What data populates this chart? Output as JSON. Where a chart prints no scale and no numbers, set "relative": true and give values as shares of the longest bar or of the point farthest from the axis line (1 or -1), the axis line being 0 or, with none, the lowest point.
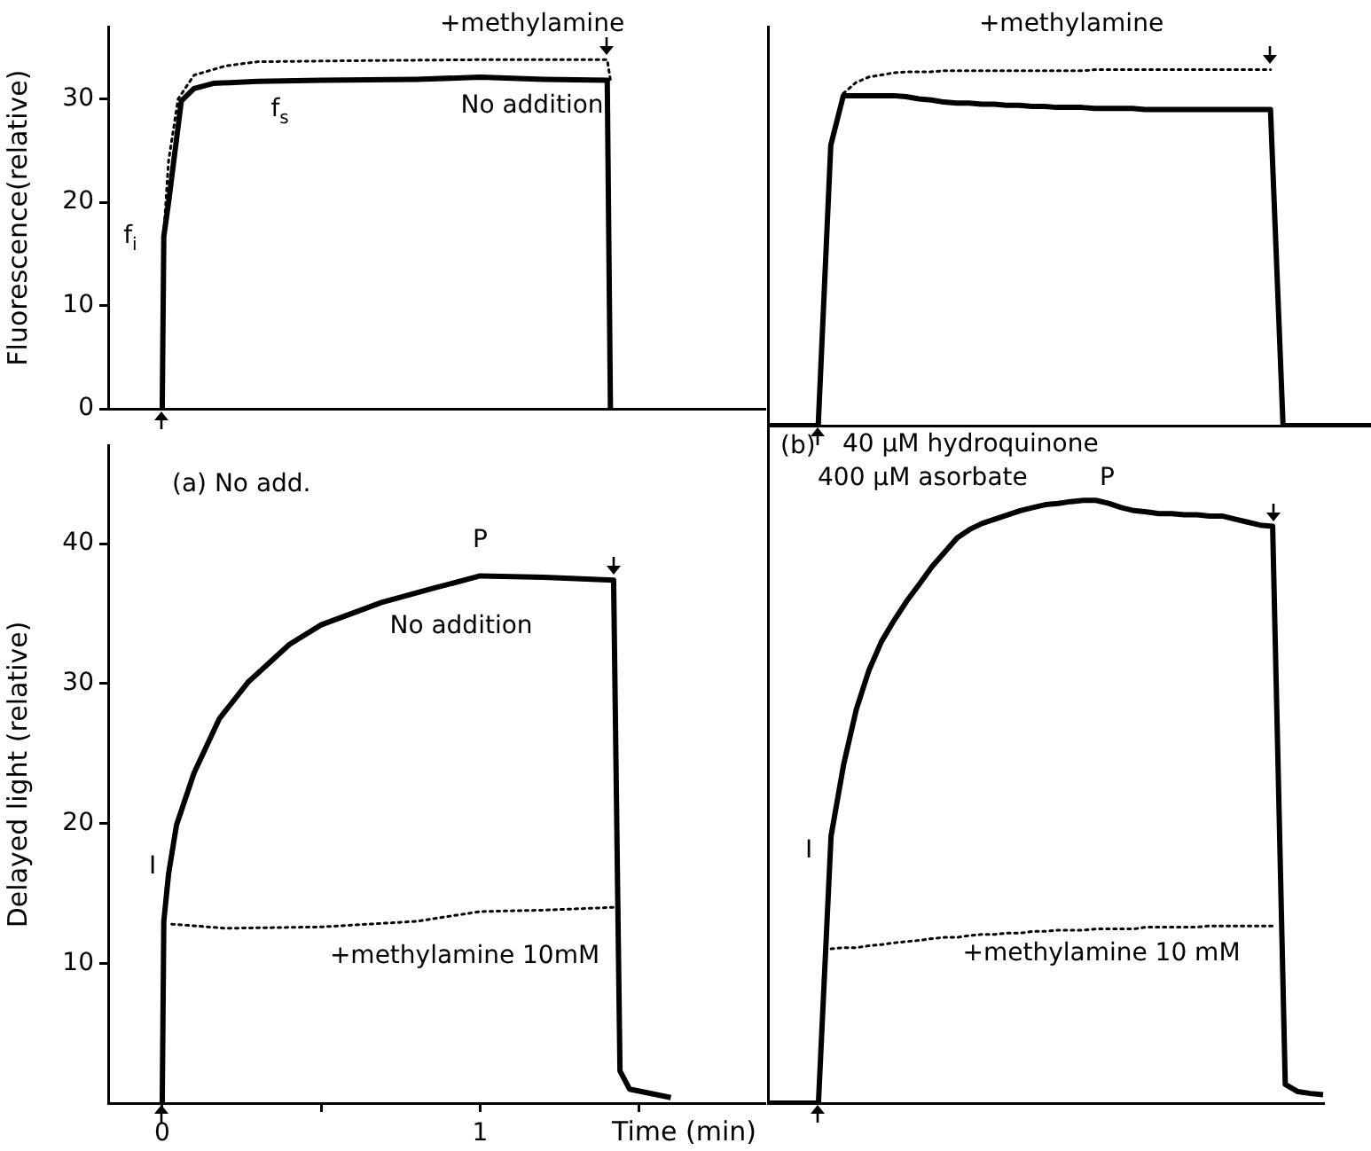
{
  "chart_data": [
    {
      "type": "line",
      "ylabel": "Fluorescence(relative)",
      "xlim": [
        -0.17,
        1.9
      ],
      "ylim": [
        0,
        37
      ],
      "yticks": [
        0,
        10,
        20,
        30
      ],
      "tick_labels": "y",
      "marker": "none",
      "annotations": [
        {
          "text": "f$_{i}$",
          "x": 0,
          "y": 17
        },
        {
          "text": "f$_{s}$",
          "x": 0.37,
          "y": 31.7
        }
      ],
      "series": [
        {
          "name": "No addition",
          "color": "#000000",
          "line_style": "solid",
          "x": [
            0,
            0.005,
            0.02,
            0.06,
            0.1,
            0.16,
            0.3,
            0.5,
            0.8,
            1.0,
            1.2,
            1.4,
            1.41
          ],
          "values": [
            0,
            16.7,
            20,
            29.8,
            31,
            31.5,
            31.7,
            31.8,
            31.9,
            32.1,
            31.9,
            31.8,
            0
          ]
        },
        {
          "name": "+methylamine",
          "color": "#000000",
          "line_style": "dotted",
          "x": [
            0.005,
            0.02,
            0.05,
            0.1,
            0.2,
            0.3,
            0.6,
            1.0,
            1.4,
            1.41
          ],
          "values": [
            17,
            24,
            30,
            32.3,
            33.2,
            33.6,
            33.7,
            33.8,
            33.8,
            31.8
          ]
        }
      ]
    },
    {
      "type": "line",
      "relative": true,
      "categories": [
        null,
        null,
        null,
        null,
        null,
        null,
        null,
        null,
        null,
        null,
        null,
        null,
        null,
        null,
        null,
        null,
        null,
        null,
        null,
        null,
        null,
        null,
        null,
        null,
        null,
        null,
        null,
        null,
        null,
        null,
        null,
        null,
        null,
        null,
        null,
        null,
        null,
        null,
        null,
        null,
        null,
        null,
        null,
        null,
        null,
        null,
        null,
        null,
        null
      ],
      "tick_labels": false,
      "marker": "none",
      "series": [
        {
          "color": "#000000",
          "line_style": "solid",
          "values": [
            0,
            0,
            0,
            0,
            0,
            0.788,
            0.927,
            0.927,
            0.927,
            0.927,
            0.927,
            0.924,
            0.918,
            0.915,
            0.909,
            0.906,
            0.906,
            0.903,
            0.903,
            0.9,
            0.9,
            0.897,
            0.897,
            0.894,
            0.894,
            0.894,
            0.891,
            0.891,
            0.891,
            0.891,
            0.888,
            0.888,
            0.888,
            0.888,
            0.888,
            0.888,
            0.888,
            0.888,
            0.888,
            0.888,
            0.888,
            0,
            0,
            0,
            0,
            0,
            0,
            0,
            0
          ]
        },
        {
          "name": "+methylamine",
          "color": "#000000",
          "line_style": "dotted",
          "values": [
            null,
            null,
            null,
            null,
            null,
            null,
            0.933,
            0.964,
            0.979,
            0.985,
            0.991,
            0.994,
            0.994,
            0.994,
            0.997,
            0.997,
            0.997,
            0.997,
            0.997,
            0.997,
            0.997,
            0.997,
            0.997,
            0.997,
            0.997,
            0.997,
            1,
            1,
            1,
            1,
            1,
            1,
            1,
            1,
            1,
            1,
            1,
            1,
            1,
            1,
            1,
            null,
            null,
            null,
            null,
            null,
            null,
            null,
            null
          ]
        }
      ]
    },
    {
      "type": "line",
      "ylabel": "Delayed light (relative)",
      "xlabel": "Time (min)",
      "xlim": [
        -0.17,
        1.9
      ],
      "ylim": [
        0,
        47
      ],
      "xticks": [
        0,
        {
          "value": 0.5,
          "label": null
        },
        1,
        {
          "value": 1.5,
          "label": null
        }
      ],
      "yticks": [
        10,
        20,
        30,
        40
      ],
      "marker": "none",
      "annotations": [
        "(a) No add.",
        {
          "text": "P",
          "x": 1.0,
          "y": 37.7
        },
        {
          "text": "I",
          "x": 0.02,
          "y": 16.4
        }
      ],
      "series": [
        {
          "name": "No addition",
          "color": "#000000",
          "line_style": "solid",
          "x": [
            0,
            0.005,
            0.02,
            0.045,
            0.1,
            0.18,
            0.27,
            0.4,
            0.5,
            0.69,
            0.85,
            1.0,
            1.2,
            1.42,
            1.44,
            1.47,
            1.6
          ],
          "values": [
            0,
            13,
            16.4,
            19.9,
            23.6,
            27.5,
            30.1,
            32.8,
            34.2,
            35.8,
            36.8,
            37.7,
            37.6,
            37.4,
            2.3,
            1.0,
            0.4
          ]
        },
        {
          "name": "+methylamine 10mM",
          "color": "#000000",
          "line_style": "dotted",
          "x": [
            0.03,
            0.2,
            0.5,
            0.8,
            1.0,
            1.2,
            1.42
          ],
          "values": [
            12.8,
            12.5,
            12.6,
            13.0,
            13.7,
            13.8,
            14.0
          ]
        }
      ]
    },
    {
      "type": "line",
      "relative": true,
      "categories": [
        null,
        null,
        null,
        null,
        null,
        null,
        null,
        null,
        null,
        null,
        null,
        null,
        null,
        null,
        null,
        null,
        null,
        null,
        null,
        null,
        null,
        null,
        null,
        null,
        null,
        null,
        null,
        null,
        null,
        null,
        null,
        null,
        null,
        null,
        null,
        null,
        null,
        null,
        null,
        null,
        null,
        null,
        null,
        null,
        null
      ],
      "tick_labels": false,
      "marker": "none",
      "annotations": [
        "(b)",
        "40 µM hydroquinone",
        "400 µM asorbate",
        "P",
        "I"
      ],
      "series": [
        {
          "color": "#000000",
          "line_style": "solid",
          "values": [
            0,
            0,
            0,
            0,
            0,
            0.443,
            0.562,
            0.653,
            0.718,
            0.766,
            0.801,
            0.833,
            0.861,
            0.89,
            0.914,
            0.938,
            0.952,
            0.962,
            0.969,
            0.976,
            0.983,
            0.988,
            0.993,
            0.995,
            0.998,
            1,
            1,
            0.995,
            0.988,
            0.983,
            0.981,
            0.978,
            0.978,
            0.976,
            0.976,
            0.974,
            0.974,
            0.969,
            0.964,
            0.959,
            0.957,
            0.031,
            0.019,
            0.016,
            0.014
          ]
        },
        {
          "name": "+methylamine 10 mM",
          "color": "#000000",
          "line_style": "dotted",
          "values": [
            null,
            null,
            null,
            null,
            null,
            0.256,
            0.258,
            0.258,
            0.261,
            0.263,
            0.266,
            0.268,
            0.27,
            0.273,
            0.275,
            0.275,
            0.278,
            0.28,
            0.28,
            0.282,
            0.282,
            0.285,
            0.285,
            0.287,
            0.287,
            0.287,
            0.289,
            0.289,
            0.289,
            0.289,
            0.292,
            0.292,
            0.292,
            0.292,
            0.292,
            0.294,
            0.294,
            0.294,
            0.294,
            0.294,
            0.294,
            null,
            null,
            null,
            null
          ]
        }
      ]
    }
  ]
}
